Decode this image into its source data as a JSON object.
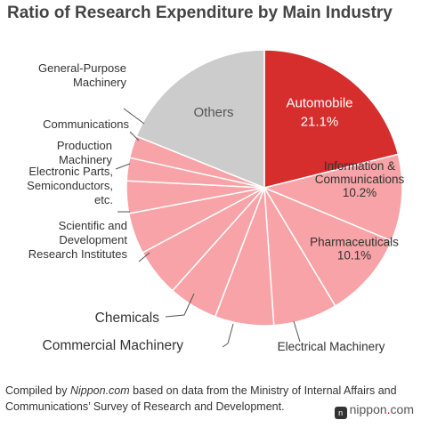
{
  "chart_data": {
    "type": "pie",
    "title": "Ratio of Research Expenditure by Main Industry",
    "start": "12-o'clock",
    "direction": "clockwise",
    "slices": [
      {
        "label": "Automobile",
        "value": 21.1,
        "value_label": "21.1%",
        "color": "#d62d2d",
        "text_color": "#ffffff"
      },
      {
        "label": "Information & Communications",
        "value": 10.2,
        "value_label": "10.2%",
        "color": "#f7a3a7",
        "text_color": "#333333"
      },
      {
        "label": "Pharmaceuticals",
        "value": 10.1,
        "value_label": "10.1%",
        "color": "#f7a3a7",
        "text_color": "#333333"
      },
      {
        "label": "Electrical Machinery",
        "value": 7.5,
        "value_label": "",
        "color": "#f7a3a7",
        "text_color": "#333333"
      },
      {
        "label": "Commercial Machinery",
        "value": 6.9,
        "value_label": "",
        "color": "#f7a3a7",
        "text_color": "#333333"
      },
      {
        "label": "Chemicals",
        "value": 5.8,
        "value_label": "",
        "color": "#f7a3a7",
        "text_color": "#333333"
      },
      {
        "label": "Scientific and Development Research Institutes",
        "value": 5.6,
        "value_label": "",
        "color": "#f7a3a7",
        "text_color": "#333333"
      },
      {
        "label": "Electronic Parts, Semiconductors, etc.",
        "value": 4.8,
        "value_label": "",
        "color": "#f7a3a7",
        "text_color": "#333333"
      },
      {
        "label": "Production Machinery",
        "value": 3.8,
        "value_label": "",
        "color": "#f7a3a7",
        "text_color": "#333333"
      },
      {
        "label": "Communications",
        "value": 2.7,
        "value_label": "",
        "color": "#f7a3a7",
        "text_color": "#333333"
      },
      {
        "label": "General-Purpose Machinery",
        "value": 2.6,
        "value_label": "",
        "color": "#f7a3a7",
        "text_color": "#333333"
      },
      {
        "label": "Others",
        "value": 18.9,
        "value_label": "",
        "color": "#cccccc",
        "text_color": "#555555"
      }
    ]
  },
  "footer": {
    "note_prefix": "Compiled by ",
    "note_source": "Nippon.com",
    "note_suffix": " based on data from the Ministry of Internal Affairs and Communications’ Survey of Research and Development."
  },
  "brand": {
    "name": "nippon",
    "dot": ".",
    "tld": "com"
  }
}
